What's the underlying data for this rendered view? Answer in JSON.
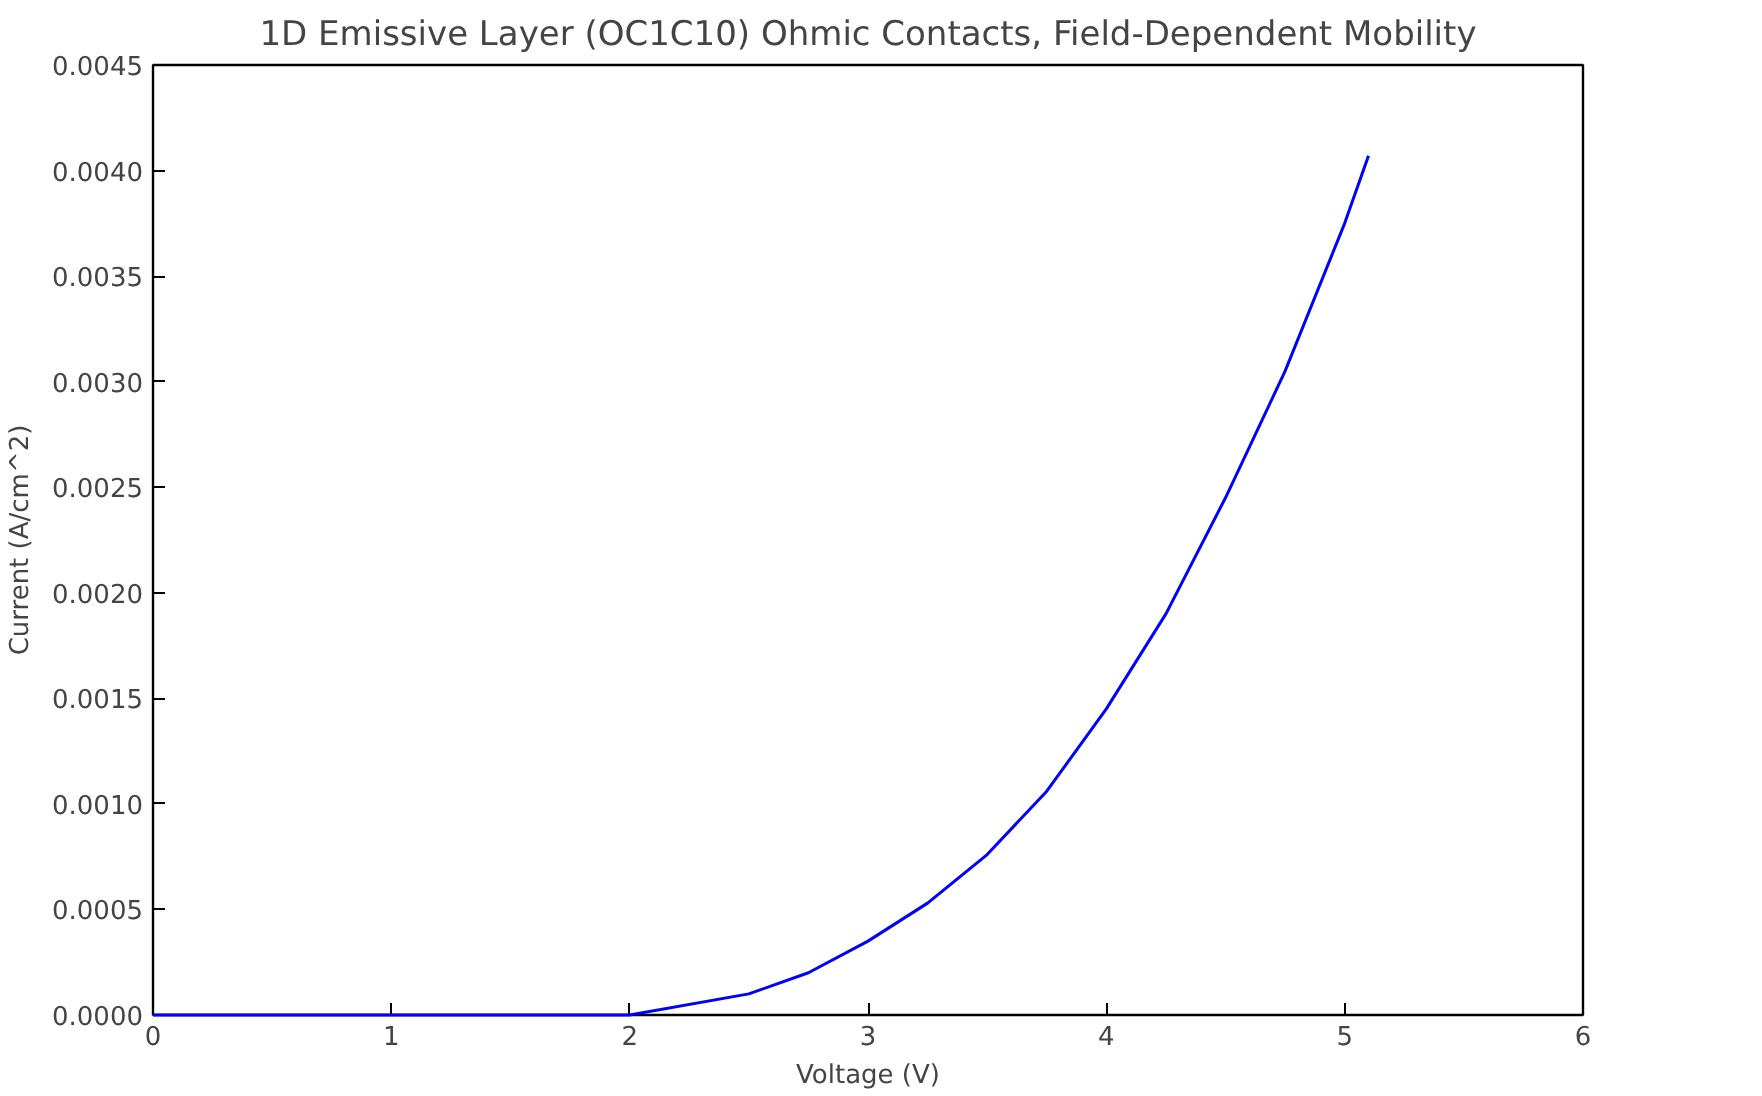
{
  "chart_data": {
    "type": "line",
    "title": "1D Emissive Layer (OC1C10) Ohmic Contacts, Field-Dependent Mobility",
    "xlabel": "Voltage (V)",
    "ylabel": "Current (A/cm^2)",
    "x": [
      0,
      1,
      1.5,
      2,
      2.5,
      2.75,
      3,
      3.25,
      3.5,
      3.75,
      4,
      4.25,
      4.5,
      4.75,
      5,
      5.1
    ],
    "series": [
      {
        "color": "#0000ff",
        "values": [
          0,
          0,
          0,
          0,
          0.0001,
          0.0002,
          0.00035,
          0.00053,
          0.00076,
          0.00106,
          0.00145,
          0.0019,
          0.00245,
          0.00305,
          0.00375,
          0.00407
        ]
      }
    ],
    "xlim": [
      0,
      6
    ],
    "xticks": [
      0,
      1,
      2,
      3,
      4,
      5,
      6
    ],
    "ylim": [
      0,
      0.0045
    ],
    "yticks": [
      {
        "value": 0,
        "label": "0.0000"
      },
      {
        "value": 0.0005,
        "label": "0.0005"
      },
      {
        "value": 0.001,
        "label": "0.0010"
      },
      {
        "value": 0.0015,
        "label": "0.0015"
      },
      {
        "value": 0.002,
        "label": "0.0020"
      },
      {
        "value": 0.0025,
        "label": "0.0025"
      },
      {
        "value": 0.003,
        "label": "0.0030"
      },
      {
        "value": 0.0035,
        "label": "0.0035"
      },
      {
        "value": 0.004,
        "label": "0.0040"
      },
      {
        "value": 0.0045,
        "label": "0.0045"
      }
    ],
    "grid": false
  }
}
